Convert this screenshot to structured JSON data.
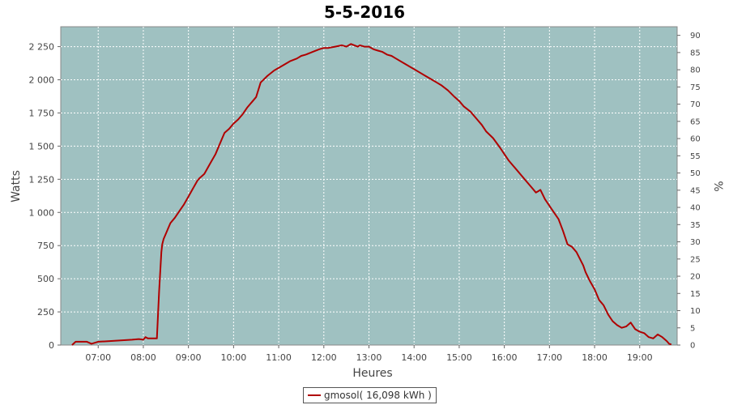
{
  "chart_data": {
    "type": "line",
    "title": "5-5-2016",
    "xlabel": "Heures",
    "ylabel": "Watts",
    "y2label": "%",
    "xlim": [
      6.17,
      19.83
    ],
    "ylim": [
      0,
      2400
    ],
    "y2lim": [
      0,
      92.5
    ],
    "x_ticks": [
      7,
      8,
      9,
      10,
      11,
      12,
      13,
      14,
      15,
      16,
      17,
      18,
      19
    ],
    "x_tick_labels": [
      "07:00",
      "08:00",
      "09:00",
      "10:00",
      "11:00",
      "12:00",
      "13:00",
      "14:00",
      "15:00",
      "16:00",
      "17:00",
      "18:00",
      "19:00"
    ],
    "y_ticks": [
      0,
      250,
      500,
      750,
      1000,
      1250,
      1500,
      1750,
      2000,
      2250
    ],
    "y_tick_labels": [
      "0",
      "250",
      "500",
      "750",
      "1 000",
      "1 250",
      "1 500",
      "1 750",
      "2 000",
      "2 250"
    ],
    "y2_ticks": [
      0,
      5,
      10,
      15,
      20,
      25,
      30,
      35,
      40,
      45,
      50,
      55,
      60,
      65,
      70,
      75,
      80,
      85,
      90
    ],
    "grid": true,
    "legend_position": "bottom",
    "colors": {
      "plot_bg": "#9fc1c1",
      "line": "#b00000",
      "grid": "#ffffff"
    },
    "series": [
      {
        "name": "gmosol( 16,098 kWh )",
        "x": [
          6.42,
          6.5,
          6.75,
          6.85,
          7.0,
          7.25,
          7.5,
          7.75,
          7.9,
          8.0,
          8.05,
          8.1,
          8.15,
          8.25,
          8.3,
          8.35,
          8.4,
          8.42,
          8.45,
          8.5,
          8.55,
          8.6,
          8.7,
          8.8,
          8.9,
          9.0,
          9.1,
          9.2,
          9.25,
          9.35,
          9.5,
          9.6,
          9.75,
          9.8,
          9.9,
          10.0,
          10.1,
          10.2,
          10.3,
          10.4,
          10.5,
          10.6,
          10.75,
          10.9,
          11.0,
          11.1,
          11.25,
          11.4,
          11.5,
          11.6,
          11.75,
          11.9,
          12.0,
          12.1,
          12.25,
          12.4,
          12.5,
          12.6,
          12.75,
          12.8,
          12.9,
          13.0,
          13.1,
          13.2,
          13.3,
          13.4,
          13.5,
          13.6,
          13.75,
          13.9,
          14.0,
          14.1,
          14.25,
          14.4,
          14.5,
          14.6,
          14.75,
          14.9,
          15.0,
          15.1,
          15.25,
          15.4,
          15.5,
          15.6,
          15.75,
          15.9,
          16.0,
          16.1,
          16.25,
          16.4,
          16.5,
          16.6,
          16.7,
          16.75,
          16.8,
          16.9,
          17.0,
          17.1,
          17.2,
          17.3,
          17.4,
          17.5,
          17.6,
          17.75,
          17.8,
          17.9,
          18.0,
          18.1,
          18.2,
          18.3,
          18.4,
          18.5,
          18.6,
          18.7,
          18.8,
          18.9,
          19.0,
          19.1,
          19.2,
          19.3,
          19.4,
          19.5,
          19.6,
          19.65,
          19.7
        ],
        "y": [
          0,
          25,
          25,
          10,
          25,
          30,
          35,
          40,
          45,
          40,
          60,
          50,
          50,
          50,
          50,
          400,
          700,
          760,
          800,
          840,
          880,
          920,
          960,
          1010,
          1060,
          1120,
          1180,
          1240,
          1260,
          1290,
          1380,
          1440,
          1560,
          1600,
          1630,
          1670,
          1700,
          1740,
          1790,
          1830,
          1870,
          1980,
          2030,
          2070,
          2090,
          2110,
          2140,
          2160,
          2180,
          2190,
          2210,
          2230,
          2240,
          2240,
          2250,
          2260,
          2250,
          2270,
          2250,
          2260,
          2250,
          2250,
          2230,
          2220,
          2210,
          2190,
          2180,
          2160,
          2130,
          2100,
          2080,
          2060,
          2030,
          2000,
          1980,
          1960,
          1920,
          1870,
          1840,
          1800,
          1760,
          1700,
          1660,
          1610,
          1560,
          1490,
          1440,
          1390,
          1330,
          1270,
          1230,
          1190,
          1150,
          1160,
          1170,
          1100,
          1050,
          1000,
          950,
          860,
          760,
          740,
          700,
          600,
          550,
          480,
          420,
          340,
          300,
          230,
          180,
          150,
          130,
          140,
          170,
          120,
          100,
          90,
          60,
          50,
          80,
          60,
          30,
          10,
          5
        ]
      }
    ]
  }
}
